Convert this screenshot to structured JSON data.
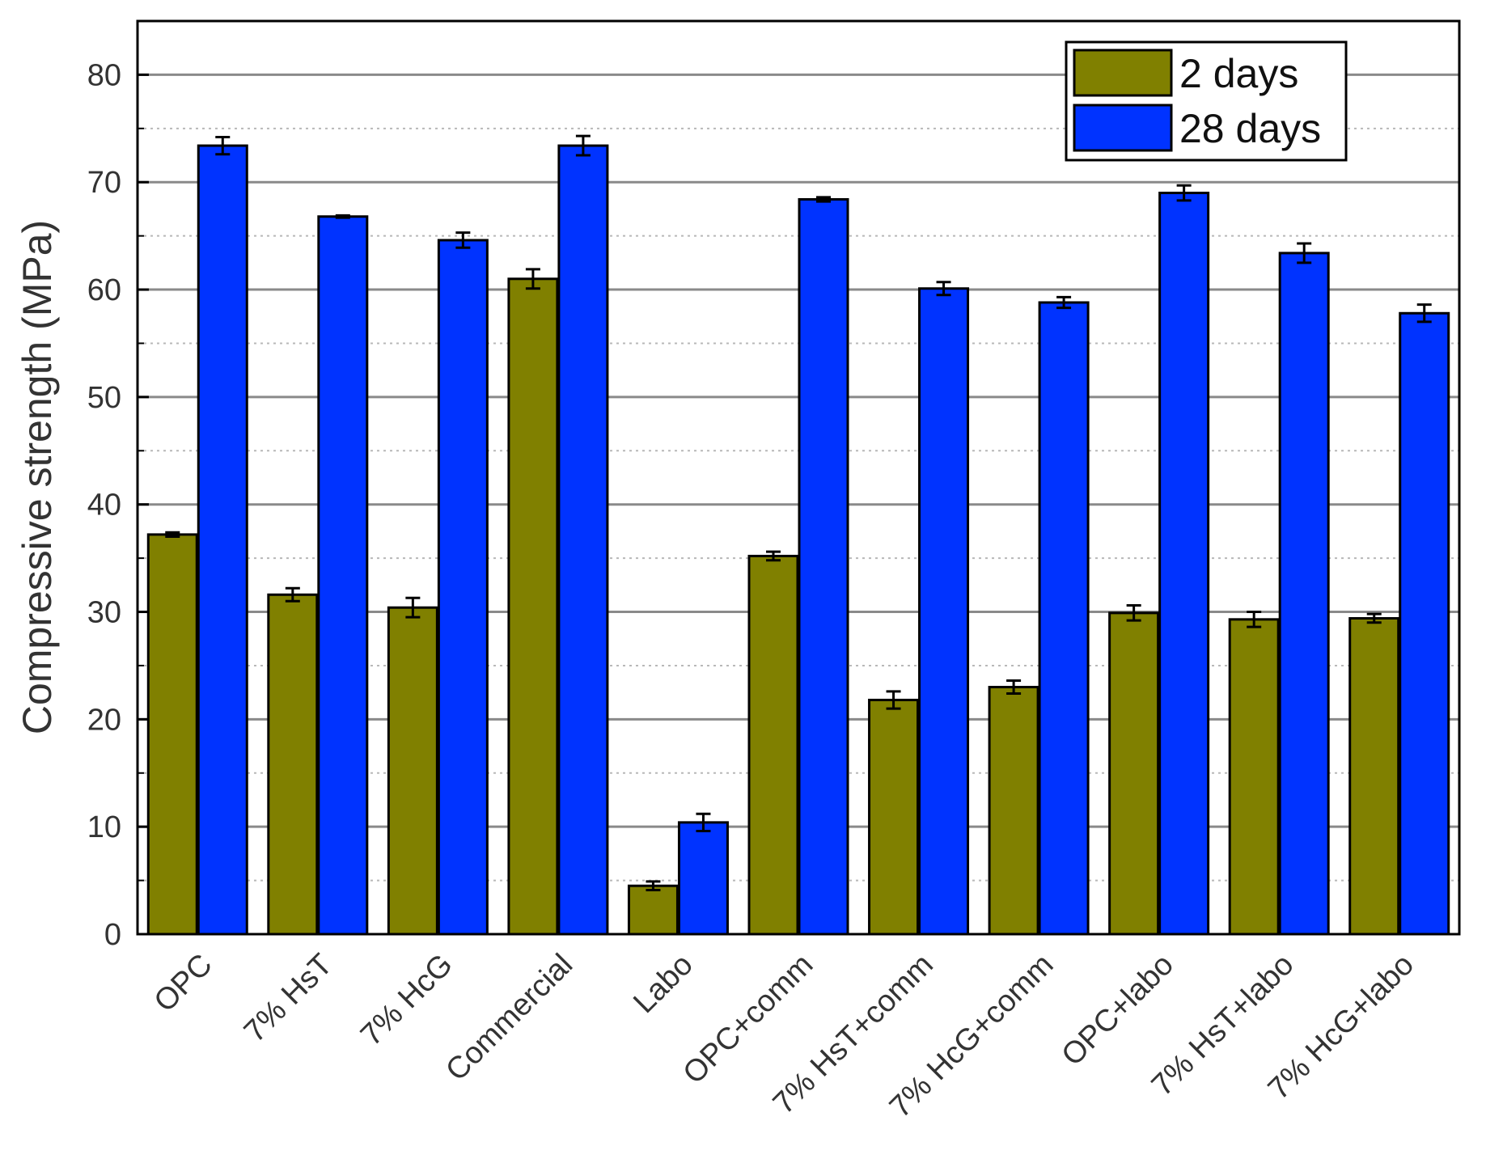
{
  "chart_data": {
    "type": "bar",
    "title": "",
    "xlabel": "",
    "ylabel": "Compressive strength (MPa)",
    "ylim": [
      0,
      85
    ],
    "yticks": [
      0,
      10,
      20,
      30,
      40,
      50,
      60,
      70,
      80
    ],
    "grid": {
      "major": true,
      "minor": true
    },
    "legend_position": "top-right",
    "categories": [
      "OPC",
      "7% HsT",
      "7% HcG",
      "Commercial",
      "Labo",
      "OPC+comm",
      "7% HsT+comm",
      "7% HcG+comm",
      "OPC+labo",
      "7% HsT+labo",
      "7% HcG+labo"
    ],
    "series": [
      {
        "name": "2 days",
        "color": "#808000",
        "values": [
          37.2,
          31.6,
          30.4,
          61.0,
          4.5,
          35.2,
          21.8,
          23.0,
          29.9,
          29.3,
          29.4
        ],
        "errors": [
          0.2,
          0.6,
          0.9,
          0.9,
          0.4,
          0.4,
          0.8,
          0.6,
          0.7,
          0.7,
          0.4
        ]
      },
      {
        "name": "28 days",
        "color": "#0033ff",
        "values": [
          73.4,
          66.8,
          64.6,
          73.4,
          10.4,
          68.4,
          60.1,
          58.8,
          69.0,
          63.4,
          57.8
        ],
        "errors": [
          0.8,
          0.1,
          0.7,
          0.9,
          0.8,
          0.2,
          0.6,
          0.5,
          0.7,
          0.9,
          0.8
        ]
      }
    ]
  }
}
